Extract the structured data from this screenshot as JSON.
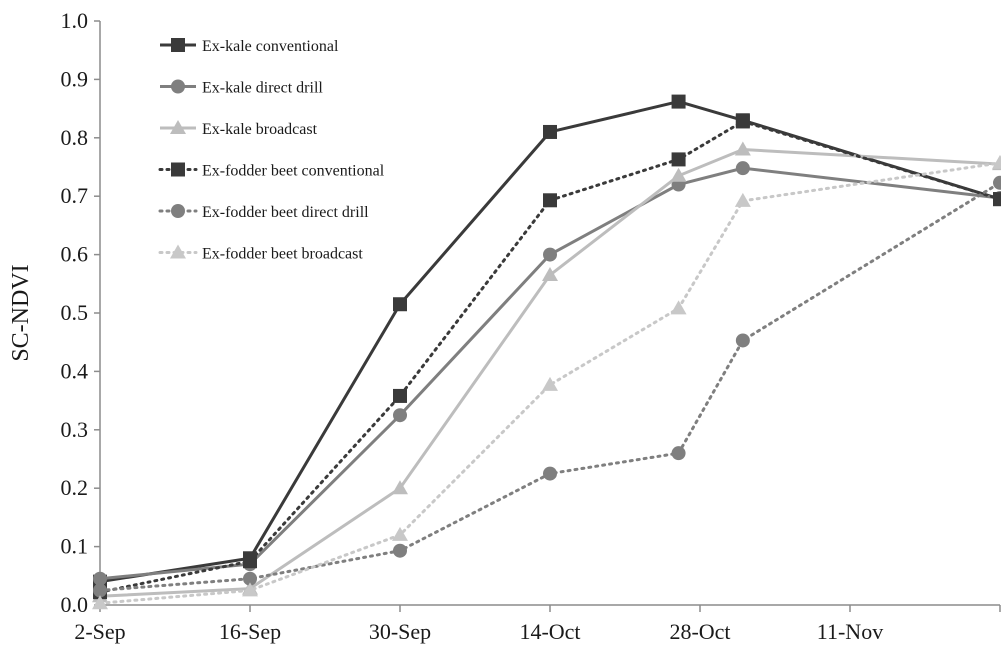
{
  "chart_data": {
    "type": "line",
    "title": "",
    "xlabel": "",
    "ylabel": "SC-NDVI",
    "ylim": [
      0.0,
      1.0
    ],
    "yticks": [
      "0.0",
      "0.1",
      "0.2",
      "0.3",
      "0.4",
      "0.5",
      "0.6",
      "0.7",
      "0.8",
      "0.9",
      "1.0"
    ],
    "xlim": [
      "2024-09-02",
      "2024-11-25"
    ],
    "xticks": [
      {
        "date": "2024-09-02",
        "label": "2-Sep"
      },
      {
        "date": "2024-09-16",
        "label": "16-Sep"
      },
      {
        "date": "2024-09-30",
        "label": "30-Sep"
      },
      {
        "date": "2024-10-14",
        "label": "14-Oct"
      },
      {
        "date": "2024-10-28",
        "label": "28-Oct"
      },
      {
        "date": "2024-11-11",
        "label": "11-Nov"
      }
    ],
    "grid": false,
    "legend_position": "top-left",
    "series": [
      {
        "name": "Ex-kale conventional",
        "color": "#3a3a3a",
        "marker": "square",
        "dash": false,
        "x": [
          "2024-09-02",
          "2024-09-16",
          "2024-09-30",
          "2024-10-14",
          "2024-10-26",
          "2024-11-01",
          "2024-11-25"
        ],
        "y": [
          0.04,
          0.08,
          0.515,
          0.81,
          0.862,
          0.83,
          0.695
        ]
      },
      {
        "name": "Ex-kale direct drill",
        "color": "#7f7f7f",
        "marker": "circle",
        "dash": false,
        "x": [
          "2024-09-02",
          "2024-09-16",
          "2024-09-30",
          "2024-10-14",
          "2024-10-26",
          "2024-11-01",
          "2024-11-25"
        ],
        "y": [
          0.045,
          0.07,
          0.325,
          0.6,
          0.72,
          0.748,
          0.697
        ]
      },
      {
        "name": "Ex-kale broadcast",
        "color": "#bdbdbd",
        "marker": "triangle",
        "dash": false,
        "x": [
          "2024-09-02",
          "2024-09-16",
          "2024-09-30",
          "2024-10-14",
          "2024-10-26",
          "2024-11-01",
          "2024-11-25"
        ],
        "y": [
          0.015,
          0.028,
          0.2,
          0.565,
          0.735,
          0.78,
          0.755
        ]
      },
      {
        "name": "Ex-fodder beet conventional",
        "color": "#3a3a3a",
        "marker": "square",
        "dash": true,
        "x": [
          "2024-09-02",
          "2024-09-16",
          "2024-09-30",
          "2024-10-14",
          "2024-10-26",
          "2024-11-01",
          "2024-11-25"
        ],
        "y": [
          0.022,
          0.075,
          0.358,
          0.693,
          0.763,
          0.828,
          0.695
        ]
      },
      {
        "name": "Ex-fodder beet direct drill",
        "color": "#7f7f7f",
        "marker": "circle",
        "dash": true,
        "x": [
          "2024-09-02",
          "2024-09-16",
          "2024-09-30",
          "2024-10-14",
          "2024-10-26",
          "2024-11-01",
          "2024-11-25"
        ],
        "y": [
          0.025,
          0.045,
          0.093,
          0.225,
          0.26,
          0.453,
          0.723
        ]
      },
      {
        "name": "Ex-fodder beet broadcast",
        "color": "#c8c8c8",
        "marker": "triangle",
        "dash": true,
        "x": [
          "2024-09-02",
          "2024-09-16",
          "2024-09-30",
          "2024-10-14",
          "2024-10-26",
          "2024-11-01",
          "2024-11-25"
        ],
        "y": [
          0.003,
          0.025,
          0.12,
          0.377,
          0.508,
          0.692,
          0.757
        ]
      }
    ]
  }
}
